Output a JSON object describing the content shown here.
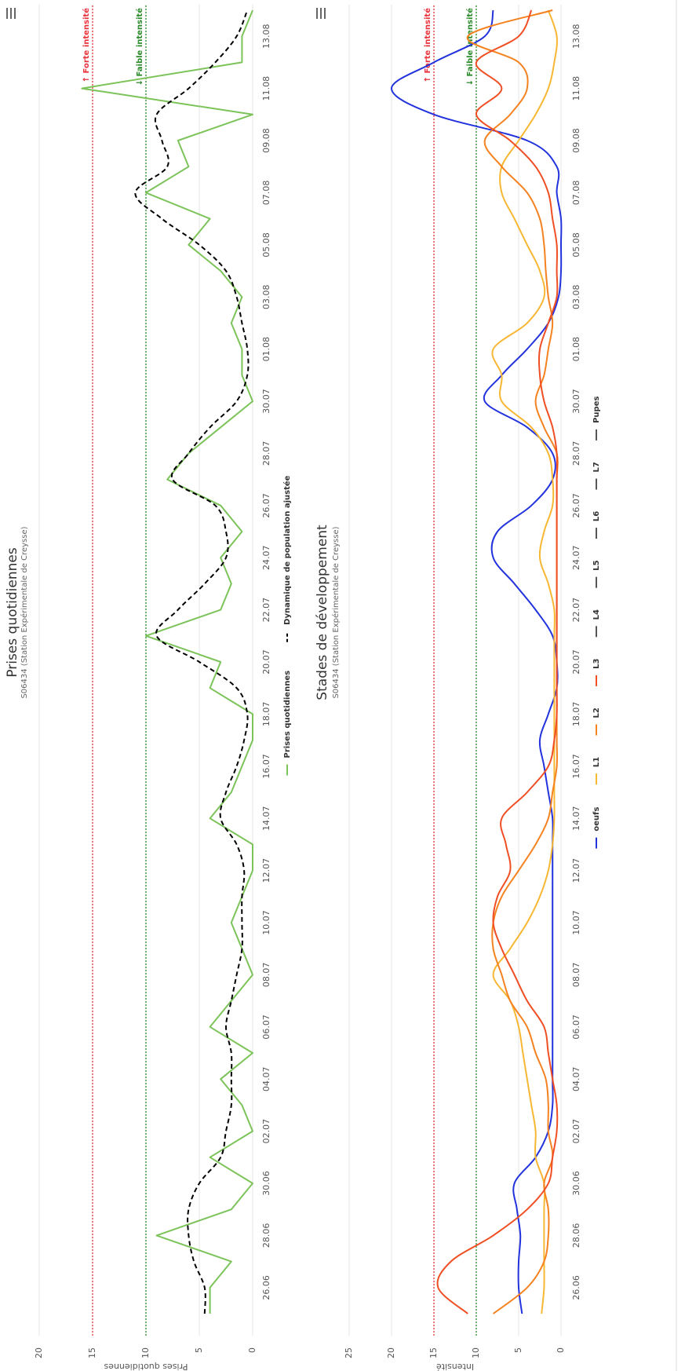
{
  "chart_data": [
    {
      "type": "line",
      "title": "Prises quotidiennes",
      "subtitle": "S06434 (Station Expérimentale de Creysse)",
      "y_label": "Prises quotidiennes",
      "categories": [
        null,
        "26.06",
        null,
        "28.06",
        null,
        "30.06",
        null,
        "02.07",
        null,
        "04.07",
        null,
        "06.07",
        null,
        "08.07",
        null,
        "10.07",
        null,
        "12.07",
        null,
        "14.07",
        null,
        "16.07",
        null,
        "18.07",
        null,
        "20.07",
        null,
        "22.07",
        null,
        "24.07",
        null,
        "26.07",
        null,
        "28.07",
        null,
        "30.07",
        null,
        "01.08",
        null,
        "03.08",
        null,
        "05.08",
        null,
        "07.08",
        null,
        "09.08",
        null,
        "11.08",
        null,
        "13.08",
        null
      ],
      "ylim": [
        0,
        20
      ],
      "yticks": [
        0,
        5,
        10,
        15,
        20
      ],
      "grid": true,
      "plot_lines": [
        {
          "value": 15,
          "label": "↑ Forte intensité",
          "color": "#e8323c"
        },
        {
          "value": 10,
          "label": "↓ Faible intensité",
          "color": "#2a8a2a"
        }
      ],
      "series": [
        {
          "name": "Prises quotidiennes",
          "color": "#7cc35a",
          "dashed": false,
          "smooth": false,
          "values": [
            4,
            4,
            2,
            9,
            2,
            0,
            4,
            0,
            1,
            3,
            0,
            4,
            2,
            0,
            1,
            2,
            1,
            0,
            0,
            4,
            2,
            1,
            0,
            0,
            4,
            3,
            10,
            3,
            2,
            3,
            1,
            3,
            8,
            6,
            3,
            0,
            1,
            1,
            2,
            1,
            3,
            6,
            4,
            10,
            6,
            7,
            0,
            16,
            1,
            1,
            0
          ]
        },
        {
          "name": "Dynamique de population ajustée",
          "color": "#000000",
          "dashed": true,
          "smooth": true,
          "values": [
            4.5,
            4.5,
            5.5,
            6,
            6,
            5,
            3,
            2.5,
            2,
            2,
            2,
            2.5,
            2,
            1.5,
            1,
            1,
            1,
            0.8,
            1.5,
            3,
            2.5,
            1.5,
            0.8,
            0.5,
            1.5,
            5,
            9,
            7,
            4.5,
            2.5,
            2.5,
            3.5,
            7.5,
            6,
            4,
            1.5,
            0.5,
            0.5,
            1,
            1.5,
            2.5,
            5,
            8.5,
            11,
            8,
            8.5,
            9,
            6,
            3.5,
            1.5,
            0.5
          ]
        }
      ]
    },
    {
      "type": "line",
      "title": "Stades de développement",
      "subtitle": "S06434 (Station Expérimentale de Creysse)",
      "y_label": "Intensité",
      "categories": [
        null,
        "26.06",
        null,
        "28.06",
        null,
        "30.06",
        null,
        "02.07",
        null,
        "04.07",
        null,
        "06.07",
        null,
        "08.07",
        null,
        "10.07",
        null,
        "12.07",
        null,
        "14.07",
        null,
        "16.07",
        null,
        "18.07",
        null,
        "20.07",
        null,
        "22.07",
        null,
        "24.07",
        null,
        "26.07",
        null,
        "28.07",
        null,
        "30.07",
        null,
        "01.08",
        null,
        "03.08",
        null,
        "05.08",
        null,
        "07.08",
        null,
        "09.08",
        null,
        "11.08",
        null,
        "13.08",
        null
      ],
      "ylim": [
        0,
        25
      ],
      "yticks": [
        0,
        5,
        10,
        15,
        20,
        25
      ],
      "grid": true,
      "plot_lines": [
        {
          "value": 15,
          "label": "↑ Forte intensité",
          "color": "#e8323c"
        },
        {
          "value": 10,
          "label": "↓ Faible intensité",
          "color": "#2a8a2a"
        }
      ],
      "series": [
        {
          "name": "oeufs",
          "color": "#2233dd",
          "smooth": true,
          "values": [
            4.6,
            5,
            5,
            4.8,
            5.2,
            5.5,
            3,
            1.5,
            1,
            1,
            1,
            1,
            1,
            1,
            1,
            1,
            1,
            1,
            1,
            1,
            1.5,
            2,
            2.5,
            1.5,
            0.5,
            0.5,
            1,
            3,
            5.5,
            8,
            7.5,
            3.5,
            1,
            1,
            4,
            9,
            7,
            4,
            1.5,
            0.3,
            0,
            0,
            0,
            0.5,
            0.5,
            4,
            15,
            20,
            15,
            9,
            8
          ]
        },
        {
          "name": "L1",
          "color": "#f7b733",
          "smooth": true,
          "values": [
            2.3,
            2,
            2,
            2,
            2,
            2,
            3,
            3,
            3.5,
            4,
            4.5,
            5,
            6,
            8,
            6,
            4,
            2.5,
            1.5,
            1,
            0.8,
            0.8,
            0.8,
            0.8,
            0.8,
            0.8,
            0.8,
            0.8,
            0.8,
            1.5,
            2.5,
            2,
            1,
            1,
            1.5,
            3.5,
            7,
            7,
            8,
            4,
            2,
            2.5,
            4,
            5.5,
            7,
            7,
            5,
            3,
            1.5,
            0.8,
            0.5,
            1.5
          ]
        },
        {
          "name": "L2",
          "color": "#f58220",
          "smooth": true,
          "values": [
            8,
            4,
            2,
            1.5,
            1.5,
            2,
            1,
            1.5,
            1.5,
            1.8,
            3,
            4,
            6,
            7,
            8,
            8,
            7,
            5,
            3,
            1.5,
            1,
            0.5,
            0.5,
            0.5,
            0.5,
            0.5,
            0.5,
            0.5,
            0.5,
            0.5,
            0.5,
            0.5,
            0.5,
            0.5,
            2,
            3,
            2,
            1.5,
            1,
            1.5,
            1.8,
            2,
            2.5,
            4,
            7,
            9,
            6,
            4,
            5,
            11,
            1
          ]
        },
        {
          "name": "L3",
          "color": "#f04e23",
          "smooth": true,
          "values": [
            11,
            14.5,
            13,
            8,
            4,
            1.5,
            1,
            0.5,
            0.5,
            1,
            1.5,
            2,
            4,
            5.5,
            7,
            8,
            7.5,
            6,
            6.5,
            7,
            4,
            1.5,
            0.8,
            0.5,
            0.5,
            0.5,
            0.5,
            0.5,
            0.5,
            0.5,
            0.5,
            0.5,
            0.5,
            0.5,
            1,
            2,
            2.5,
            2.5,
            1.5,
            0.5,
            0.5,
            0.5,
            1,
            1.5,
            3,
            6,
            10,
            7,
            10,
            5,
            3.5
          ]
        },
        {
          "name": "L4",
          "color": "#555555"
        },
        {
          "name": "L5",
          "color": "#555555"
        },
        {
          "name": "L6",
          "color": "#555555"
        },
        {
          "name": "L7",
          "color": "#555555"
        },
        {
          "name": "Pupes",
          "color": "#555555"
        }
      ]
    }
  ]
}
